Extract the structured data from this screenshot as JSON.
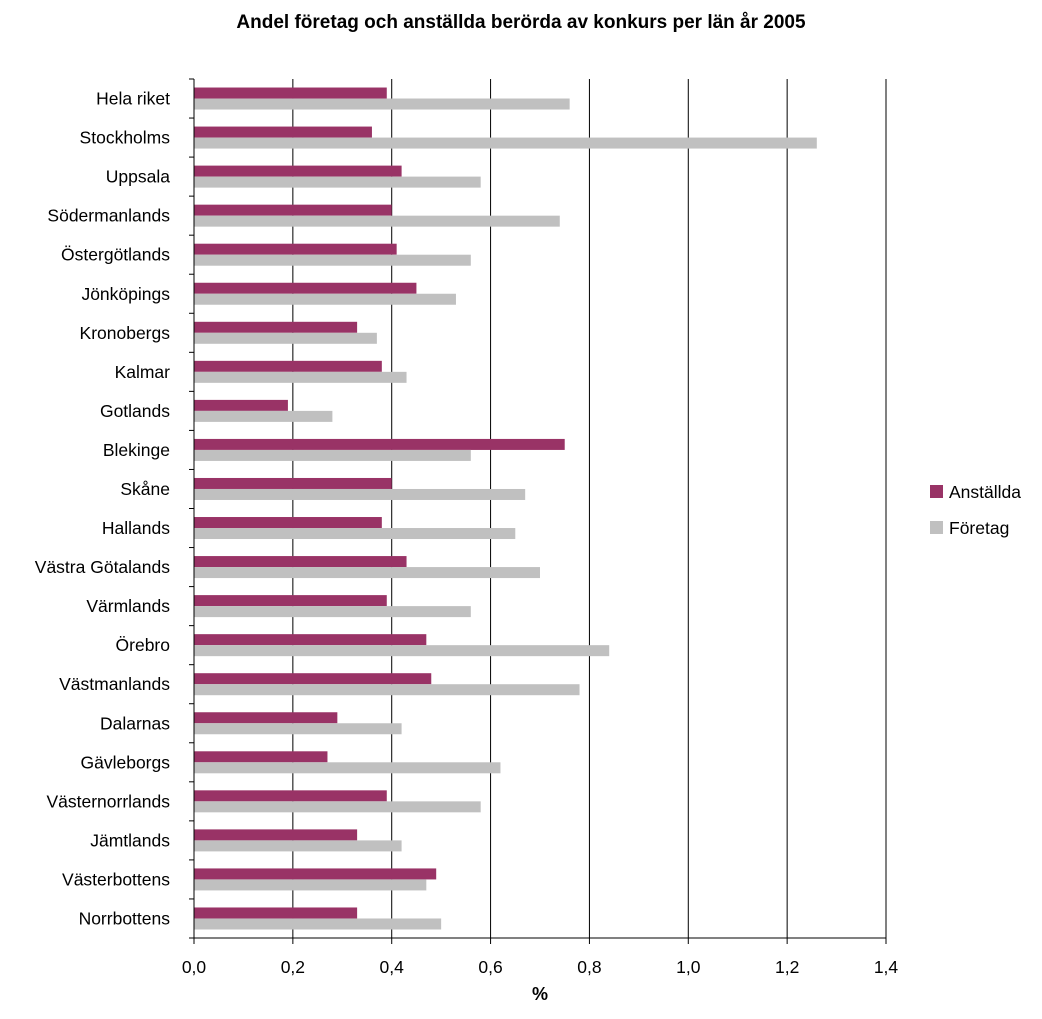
{
  "chart_data": {
    "type": "bar",
    "orientation": "horizontal",
    "title": "Andel företag och anställda berörda av konkurs per län år 2005",
    "xlabel": "%",
    "ylabel": "",
    "xlim": [
      0,
      1.4
    ],
    "x_ticks": [
      "0,0",
      "0,2",
      "0,4",
      "0,6",
      "0,8",
      "1,0",
      "1,2",
      "1,4"
    ],
    "x_tick_values": [
      0,
      0.2,
      0.4,
      0.6,
      0.8,
      1.0,
      1.2,
      1.4
    ],
    "grid": "vertical",
    "legend_position": "right",
    "categories": [
      "Hela riket",
      "Stockholms",
      "Uppsala",
      "Södermanlands",
      "Östergötlands",
      "Jönköpings",
      "Kronobergs",
      "Kalmar",
      "Gotlands",
      "Blekinge",
      "Skåne",
      "Hallands",
      "Västra Götalands",
      "Värmlands",
      "Örebro",
      "Västmanlands",
      "Dalarnas",
      "Gävleborgs",
      "Västernorrlands",
      "Jämtlands",
      "Västerbottens",
      "Norrbottens"
    ],
    "series": [
      {
        "name": "Anställda",
        "color": "#993366",
        "values": [
          0.39,
          0.36,
          0.42,
          0.4,
          0.41,
          0.45,
          0.33,
          0.38,
          0.19,
          0.75,
          0.4,
          0.38,
          0.43,
          0.39,
          0.47,
          0.48,
          0.29,
          0.27,
          0.39,
          0.33,
          0.49,
          0.33
        ]
      },
      {
        "name": "Företag",
        "color": "#C0C0C0",
        "values": [
          0.76,
          1.26,
          0.58,
          0.74,
          0.56,
          0.53,
          0.37,
          0.43,
          0.28,
          0.56,
          0.67,
          0.65,
          0.7,
          0.56,
          0.84,
          0.78,
          0.42,
          0.62,
          0.58,
          0.42,
          0.47,
          0.5
        ]
      }
    ]
  }
}
